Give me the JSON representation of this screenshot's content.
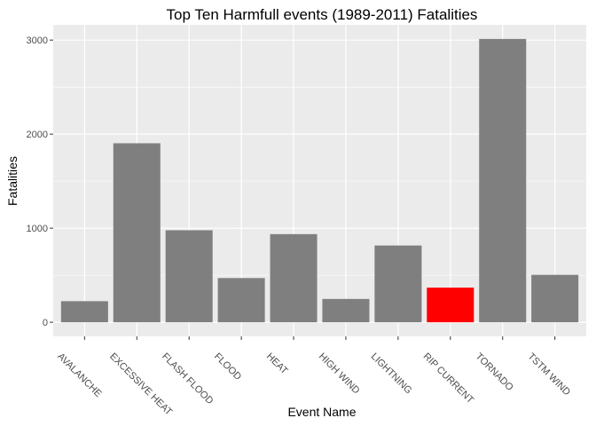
{
  "chart_data": {
    "type": "bar",
    "title": "Top Ten Harmfull events (1989-2011) Fatalities",
    "xlabel": "Event Name",
    "ylabel": "Fatalities",
    "categories": [
      "AVALANCHE",
      "EXCESSIVE HEAT",
      "FLASH FLOOD",
      "FLOOD",
      "HEAT",
      "HIGH WIND",
      "LIGHTNING",
      "RIP CURRENT",
      "TORNADO",
      "TSTM WIND"
    ],
    "values": [
      224,
      1903,
      978,
      470,
      937,
      248,
      816,
      368,
      3012,
      504
    ],
    "bar_colors": [
      "#7f7f7f",
      "#7f7f7f",
      "#7f7f7f",
      "#7f7f7f",
      "#7f7f7f",
      "#7f7f7f",
      "#7f7f7f",
      "#ff0000",
      "#7f7f7f",
      "#7f7f7f"
    ],
    "y_ticks": [
      0,
      1000,
      2000,
      3000
    ],
    "ylim": [
      -150,
      3162
    ],
    "grid": true,
    "panel_background": "#ebebeb"
  }
}
